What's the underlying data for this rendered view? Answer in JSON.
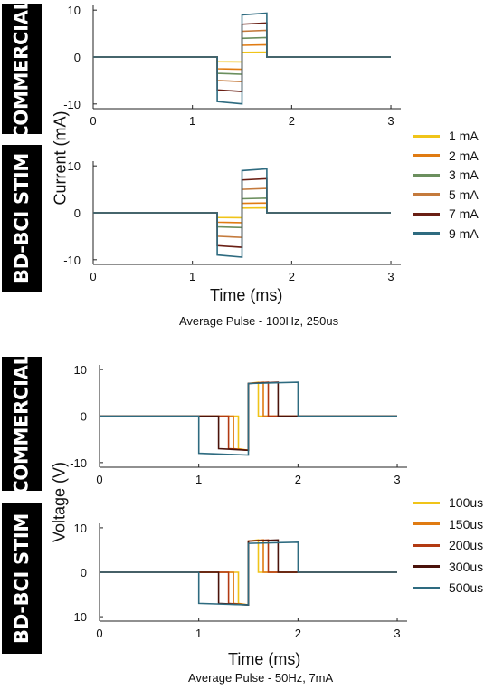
{
  "labels": {
    "commercial": "COMMERCIAL",
    "bdbci": "BD-BCI STIM",
    "ylabel_top": "Current (mA)",
    "ylabel_bottom": "Voltage (V)",
    "xlabel": "Time (ms)",
    "caption_top": "Average Pulse - 100Hz, 250us",
    "caption_bottom": "Average Pulse - 50Hz, 7mA"
  },
  "chart_data": [
    {
      "type": "line",
      "panel": "current-commercial",
      "xlim": [
        0,
        3.1
      ],
      "ylim": [
        -11,
        11
      ],
      "xticks": [
        "0",
        "1",
        "2",
        "3"
      ],
      "yticks": [
        "10",
        "0",
        "-10"
      ],
      "ylabel": "Current (mA)",
      "series": [
        {
          "name": "1 mA",
          "color": "#f0c419",
          "pulse_start": 1.25,
          "cathodic": -1,
          "anodic": 1,
          "end": 1.75
        },
        {
          "name": "2 mA",
          "color": "#e07b12",
          "pulse_start": 1.25,
          "cathodic": -2.5,
          "anodic": 2.5,
          "end": 1.75
        },
        {
          "name": "3 mA",
          "color": "#6b8f5e",
          "pulse_start": 1.25,
          "cathodic": -3.5,
          "anodic": 4,
          "end": 1.75
        },
        {
          "name": "5 mA",
          "color": "#c47a3c",
          "pulse_start": 1.25,
          "cathodic": -5,
          "anodic": 5.5,
          "end": 1.75
        },
        {
          "name": "7 mA",
          "color": "#6a1f14",
          "pulse_start": 1.25,
          "cathodic": -7,
          "anodic": 7,
          "end": 1.75
        },
        {
          "name": "9 mA",
          "color": "#2e6b80",
          "pulse_start": 1.25,
          "cathodic": -9.5,
          "anodic": 9,
          "end": 1.75
        }
      ]
    },
    {
      "type": "line",
      "panel": "current-bdbci",
      "xlim": [
        0,
        3.1
      ],
      "ylim": [
        -11,
        11
      ],
      "xticks": [
        "0",
        "1",
        "2",
        "3"
      ],
      "yticks": [
        "10",
        "0",
        "-10"
      ],
      "series": [
        {
          "name": "1 mA",
          "color": "#f0c419",
          "pulse_start": 1.25,
          "cathodic": -1,
          "anodic": 1,
          "end": 1.75
        },
        {
          "name": "2 mA",
          "color": "#e07b12",
          "pulse_start": 1.25,
          "cathodic": -2,
          "anodic": 2,
          "end": 1.75
        },
        {
          "name": "3 mA",
          "color": "#6b8f5e",
          "pulse_start": 1.25,
          "cathodic": -3,
          "anodic": 3,
          "end": 1.75
        },
        {
          "name": "5 mA",
          "color": "#c47a3c",
          "pulse_start": 1.25,
          "cathodic": -5,
          "anodic": 5,
          "end": 1.75
        },
        {
          "name": "7 mA",
          "color": "#6a1f14",
          "pulse_start": 1.25,
          "cathodic": -7,
          "anodic": 7,
          "end": 1.75
        },
        {
          "name": "9 mA",
          "color": "#2e6b80",
          "pulse_start": 1.25,
          "cathodic": -9,
          "anodic": 9,
          "end": 1.75
        }
      ]
    },
    {
      "type": "line",
      "panel": "voltage-commercial",
      "xlim": [
        0,
        3.1
      ],
      "ylim": [
        -11,
        11
      ],
      "xticks": [
        "0",
        "1",
        "2",
        "3"
      ],
      "yticks": [
        "10",
        "0",
        "-10"
      ],
      "ylabel": "Voltage (V)",
      "series": [
        {
          "name": "100us",
          "color": "#f0c419",
          "pulse_start": 1.4,
          "width": 0.1,
          "cathodic": -7,
          "anodic": 7
        },
        {
          "name": "150us",
          "color": "#e07b12",
          "pulse_start": 1.35,
          "width": 0.15,
          "cathodic": -7,
          "anodic": 7
        },
        {
          "name": "200us",
          "color": "#b23a12",
          "pulse_start": 1.3,
          "width": 0.2,
          "cathodic": -7,
          "anodic": 7
        },
        {
          "name": "300us",
          "color": "#4a120a",
          "pulse_start": 1.2,
          "width": 0.3,
          "cathodic": -7,
          "anodic": 7
        },
        {
          "name": "500us",
          "color": "#2e6b80",
          "pulse_start": 1.0,
          "width": 0.5,
          "cathodic": -8,
          "anodic": 7
        }
      ]
    },
    {
      "type": "line",
      "panel": "voltage-bdbci",
      "xlim": [
        0,
        3.1
      ],
      "ylim": [
        -11,
        11
      ],
      "xticks": [
        "0",
        "1",
        "2",
        "3"
      ],
      "yticks": [
        "10",
        "0",
        "-10"
      ],
      "series": [
        {
          "name": "100us",
          "color": "#f0c419",
          "pulse_start": 1.4,
          "width": 0.1,
          "cathodic": -7,
          "anodic": 7
        },
        {
          "name": "150us",
          "color": "#e07b12",
          "pulse_start": 1.35,
          "width": 0.15,
          "cathodic": -7,
          "anodic": 7
        },
        {
          "name": "200us",
          "color": "#b23a12",
          "pulse_start": 1.3,
          "width": 0.2,
          "cathodic": -7,
          "anodic": 7
        },
        {
          "name": "300us",
          "color": "#4a120a",
          "pulse_start": 1.2,
          "width": 0.3,
          "cathodic": -7,
          "anodic": 7
        },
        {
          "name": "500us",
          "color": "#2e6b80",
          "pulse_start": 1.0,
          "width": 0.5,
          "cathodic": -7,
          "anodic": 6.5
        }
      ]
    }
  ],
  "legend_top": [
    {
      "label": "1 mA",
      "color": "#f0c419"
    },
    {
      "label": "2 mA",
      "color": "#e07b12"
    },
    {
      "label": "3 mA",
      "color": "#6b8f5e"
    },
    {
      "label": "5 mA",
      "color": "#c47a3c"
    },
    {
      "label": "7 mA",
      "color": "#6a1f14"
    },
    {
      "label": "9 mA",
      "color": "#2e6b80"
    }
  ],
  "legend_bottom": [
    {
      "label": "100us",
      "color": "#f0c419"
    },
    {
      "label": "150us",
      "color": "#e07b12"
    },
    {
      "label": "200us",
      "color": "#b23a12"
    },
    {
      "label": "300us",
      "color": "#4a120a"
    },
    {
      "label": "500us",
      "color": "#2e6b80"
    }
  ]
}
